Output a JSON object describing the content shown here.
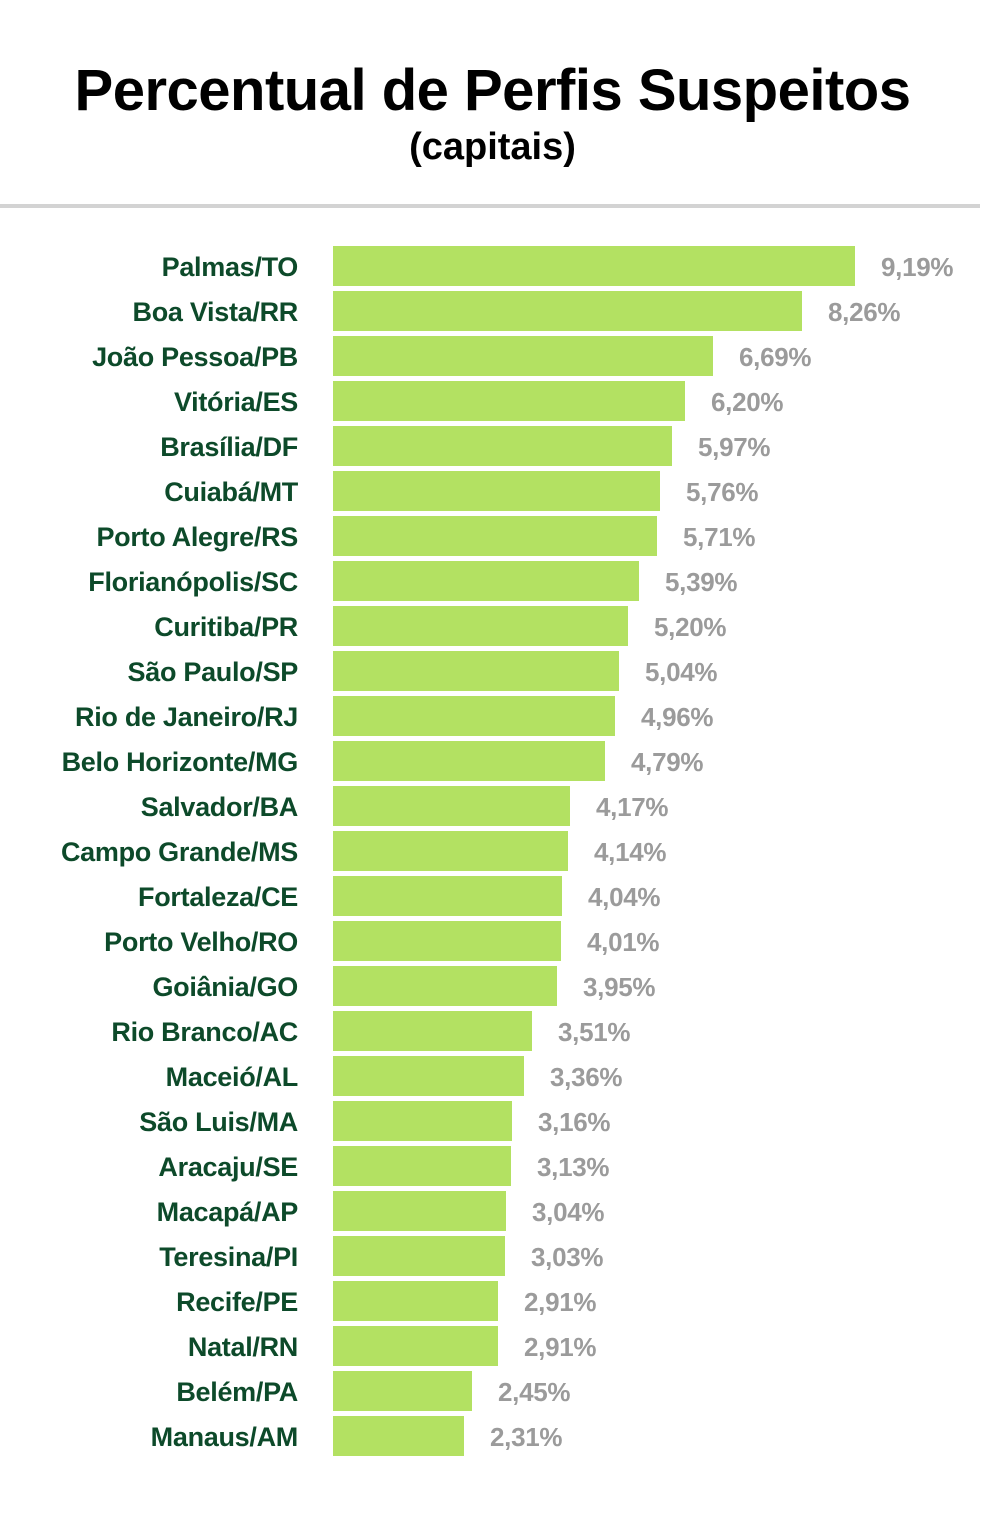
{
  "header": {
    "title": "Percentual de Perfis Suspeitos",
    "subtitle": "(capitais)"
  },
  "colors": {
    "bar": "#b3e162",
    "label": "#0d4a2a",
    "value": "#9b9b9b",
    "title": "#000000",
    "divider": "#d3d3d3"
  },
  "chart_data": {
    "type": "bar",
    "orientation": "horizontal",
    "title": "Percentual de Perfis Suspeitos",
    "subtitle": "(capitais)",
    "xlabel": "",
    "ylabel": "",
    "grid": false,
    "legend": null,
    "unit": "%",
    "categories": [
      "Palmas/TO",
      "Boa Vista/RR",
      "João Pessoa/PB",
      "Vitória/ES",
      "Brasília/DF",
      "Cuiabá/MT",
      "Porto Alegre/RS",
      "Florianópolis/SC",
      "Curitiba/PR",
      "São Paulo/SP",
      "Rio de Janeiro/RJ",
      "Belo Horizonte/MG",
      "Salvador/BA",
      "Campo Grande/MS",
      "Fortaleza/CE",
      "Porto Velho/RO",
      "Goiânia/GO",
      "Rio Branco/AC",
      "Maceió/AL",
      "São Luis/MA",
      "Aracaju/SE",
      "Macapá/AP",
      "Teresina/PI",
      "Recife/PE",
      "Natal/RN",
      "Belém/PA",
      "Manaus/AM"
    ],
    "values": [
      9.19,
      8.26,
      6.69,
      6.2,
      5.97,
      5.76,
      5.71,
      5.39,
      5.2,
      5.04,
      4.96,
      4.79,
      4.17,
      4.14,
      4.04,
      4.01,
      3.95,
      3.51,
      3.36,
      3.16,
      3.13,
      3.04,
      3.03,
      2.91,
      2.91,
      2.45,
      2.31
    ],
    "value_labels": [
      "9,19%",
      "8,26%",
      "6,69%",
      "6,20%",
      "5,97%",
      "5,76%",
      "5,71%",
      "5,39%",
      "5,20%",
      "5,04%",
      "4,96%",
      "4,79%",
      "4,17%",
      "4,14%",
      "4,04%",
      "4,01%",
      "3,95%",
      "3,51%",
      "3,36%",
      "3,16%",
      "3,13%",
      "3,04%",
      "3,03%",
      "2,91%",
      "2,91%",
      "2,45%",
      "2,31%"
    ],
    "xlim": [
      0,
      9.19
    ]
  }
}
